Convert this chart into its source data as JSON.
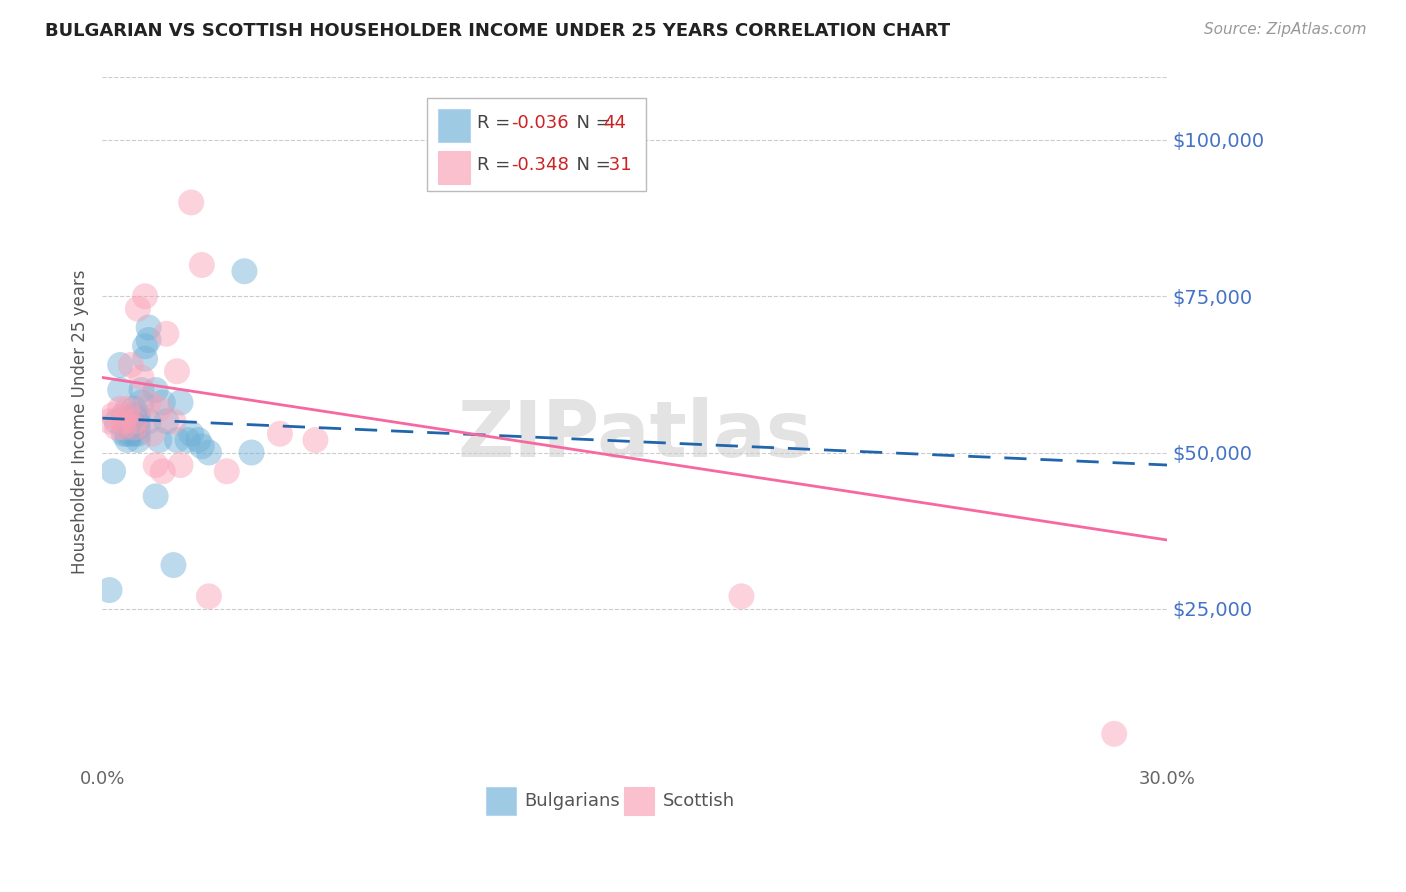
{
  "title": "BULGARIAN VS SCOTTISH HOUSEHOLDER INCOME UNDER 25 YEARS CORRELATION CHART",
  "source": "Source: ZipAtlas.com",
  "ylabel": "Householder Income Under 25 years",
  "ytick_labels": [
    "$25,000",
    "$50,000",
    "$75,000",
    "$100,000"
  ],
  "ytick_values": [
    25000,
    50000,
    75000,
    100000
  ],
  "xlim": [
    0.0,
    0.3
  ],
  "ylim": [
    0,
    110000
  ],
  "bulgarian_R": -0.036,
  "bulgarian_N": 44,
  "scottish_R": -0.348,
  "scottish_N": 31,
  "bulgarian_color": "#6baed6",
  "scottish_color": "#fa9fb5",
  "trend_bulgarian_color": "#2166ac",
  "trend_scottish_color": "#f768a1",
  "bulgarian_x": [
    0.002,
    0.003,
    0.004,
    0.005,
    0.005,
    0.006,
    0.006,
    0.007,
    0.007,
    0.007,
    0.008,
    0.008,
    0.008,
    0.009,
    0.009,
    0.009,
    0.009,
    0.01,
    0.01,
    0.01,
    0.01,
    0.01,
    0.011,
    0.011,
    0.012,
    0.012,
    0.013,
    0.013,
    0.013,
    0.015,
    0.015,
    0.016,
    0.017,
    0.018,
    0.02,
    0.021,
    0.022,
    0.024,
    0.025,
    0.027,
    0.028,
    0.03,
    0.04,
    0.042
  ],
  "bulgarian_y": [
    28000,
    47000,
    55000,
    64000,
    60000,
    53000,
    56000,
    55000,
    53000,
    52000,
    55000,
    54000,
    53000,
    57000,
    56000,
    55000,
    53000,
    56000,
    55000,
    54000,
    53000,
    52000,
    60000,
    58000,
    67000,
    65000,
    70000,
    68000,
    55000,
    60000,
    43000,
    52000,
    58000,
    55000,
    32000,
    52000,
    58000,
    52000,
    53000,
    52000,
    51000,
    50000,
    79000,
    50000
  ],
  "scottish_x": [
    0.002,
    0.003,
    0.004,
    0.005,
    0.006,
    0.006,
    0.007,
    0.007,
    0.008,
    0.009,
    0.009,
    0.01,
    0.011,
    0.012,
    0.013,
    0.014,
    0.015,
    0.016,
    0.017,
    0.018,
    0.02,
    0.021,
    0.022,
    0.025,
    0.028,
    0.03,
    0.035,
    0.05,
    0.06,
    0.18,
    0.285
  ],
  "scottish_y": [
    55000,
    56000,
    54000,
    57000,
    55000,
    54000,
    57000,
    56000,
    64000,
    55000,
    54000,
    73000,
    62000,
    75000,
    58000,
    53000,
    48000,
    57000,
    47000,
    69000,
    55000,
    63000,
    48000,
    90000,
    80000,
    27000,
    47000,
    53000,
    52000,
    27000,
    5000
  ],
  "trend_bul_x0": 0.0,
  "trend_bul_y0": 55500,
  "trend_bul_x1": 0.3,
  "trend_bul_y1": 48000,
  "trend_sco_x0": 0.0,
  "trend_sco_y0": 62000,
  "trend_sco_x1": 0.3,
  "trend_sco_y1": 36000
}
